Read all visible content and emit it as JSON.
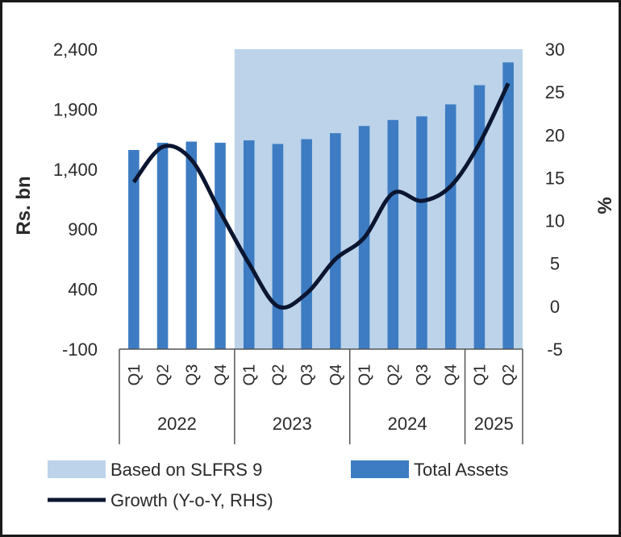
{
  "chart_data": {
    "type": "bar+line",
    "categories": [
      "Q1",
      "Q2",
      "Q3",
      "Q4",
      "Q1",
      "Q2",
      "Q3",
      "Q4",
      "Q1",
      "Q2",
      "Q3",
      "Q4",
      "Q1",
      "Q2"
    ],
    "groups": [
      {
        "label": "2022",
        "count": 4
      },
      {
        "label": "2023",
        "count": 4
      },
      {
        "label": "2024",
        "count": 4
      },
      {
        "label": "2025",
        "count": 2
      }
    ],
    "series": [
      {
        "name": "Total Assets",
        "type": "bar",
        "axis": "left",
        "color": "#3d7cc2",
        "values": [
          1560,
          1620,
          1630,
          1620,
          1640,
          1610,
          1650,
          1700,
          1760,
          1810,
          1840,
          1940,
          2100,
          2290
        ]
      },
      {
        "name": "Growth (Y-o-Y, RHS)",
        "type": "line",
        "axis": "right",
        "color": "#0b1530",
        "values": [
          14.5,
          18.6,
          17.1,
          11,
          5,
          0,
          1.5,
          5.5,
          8,
          13.2,
          12.3,
          14,
          19,
          26
        ]
      },
      {
        "name": "Based on SLFRS 9",
        "type": "shaded-region",
        "color": "#bcd3ea",
        "start_index": 4,
        "end_index": 13
      }
    ],
    "y_left": {
      "label": "Rs. bn",
      "min": -100,
      "max": 2400,
      "ticks": [
        "2,400",
        "1,900",
        "1,400",
        "900",
        "400",
        "-100"
      ],
      "tick_values": [
        2400,
        1900,
        1400,
        900,
        400,
        -100
      ]
    },
    "y_right": {
      "label": "%",
      "min": -5,
      "max": 30,
      "ticks": [
        "30",
        "25",
        "20",
        "15",
        "10",
        "5",
        "0",
        "-5"
      ],
      "tick_values": [
        30,
        25,
        20,
        15,
        10,
        5,
        0,
        -5
      ]
    },
    "legend": [
      {
        "label": "Based on SLFRS 9",
        "kind": "area"
      },
      {
        "label": "Total Assets",
        "kind": "bar"
      },
      {
        "label": "Growth (Y-o-Y, RHS)",
        "kind": "line"
      }
    ]
  }
}
